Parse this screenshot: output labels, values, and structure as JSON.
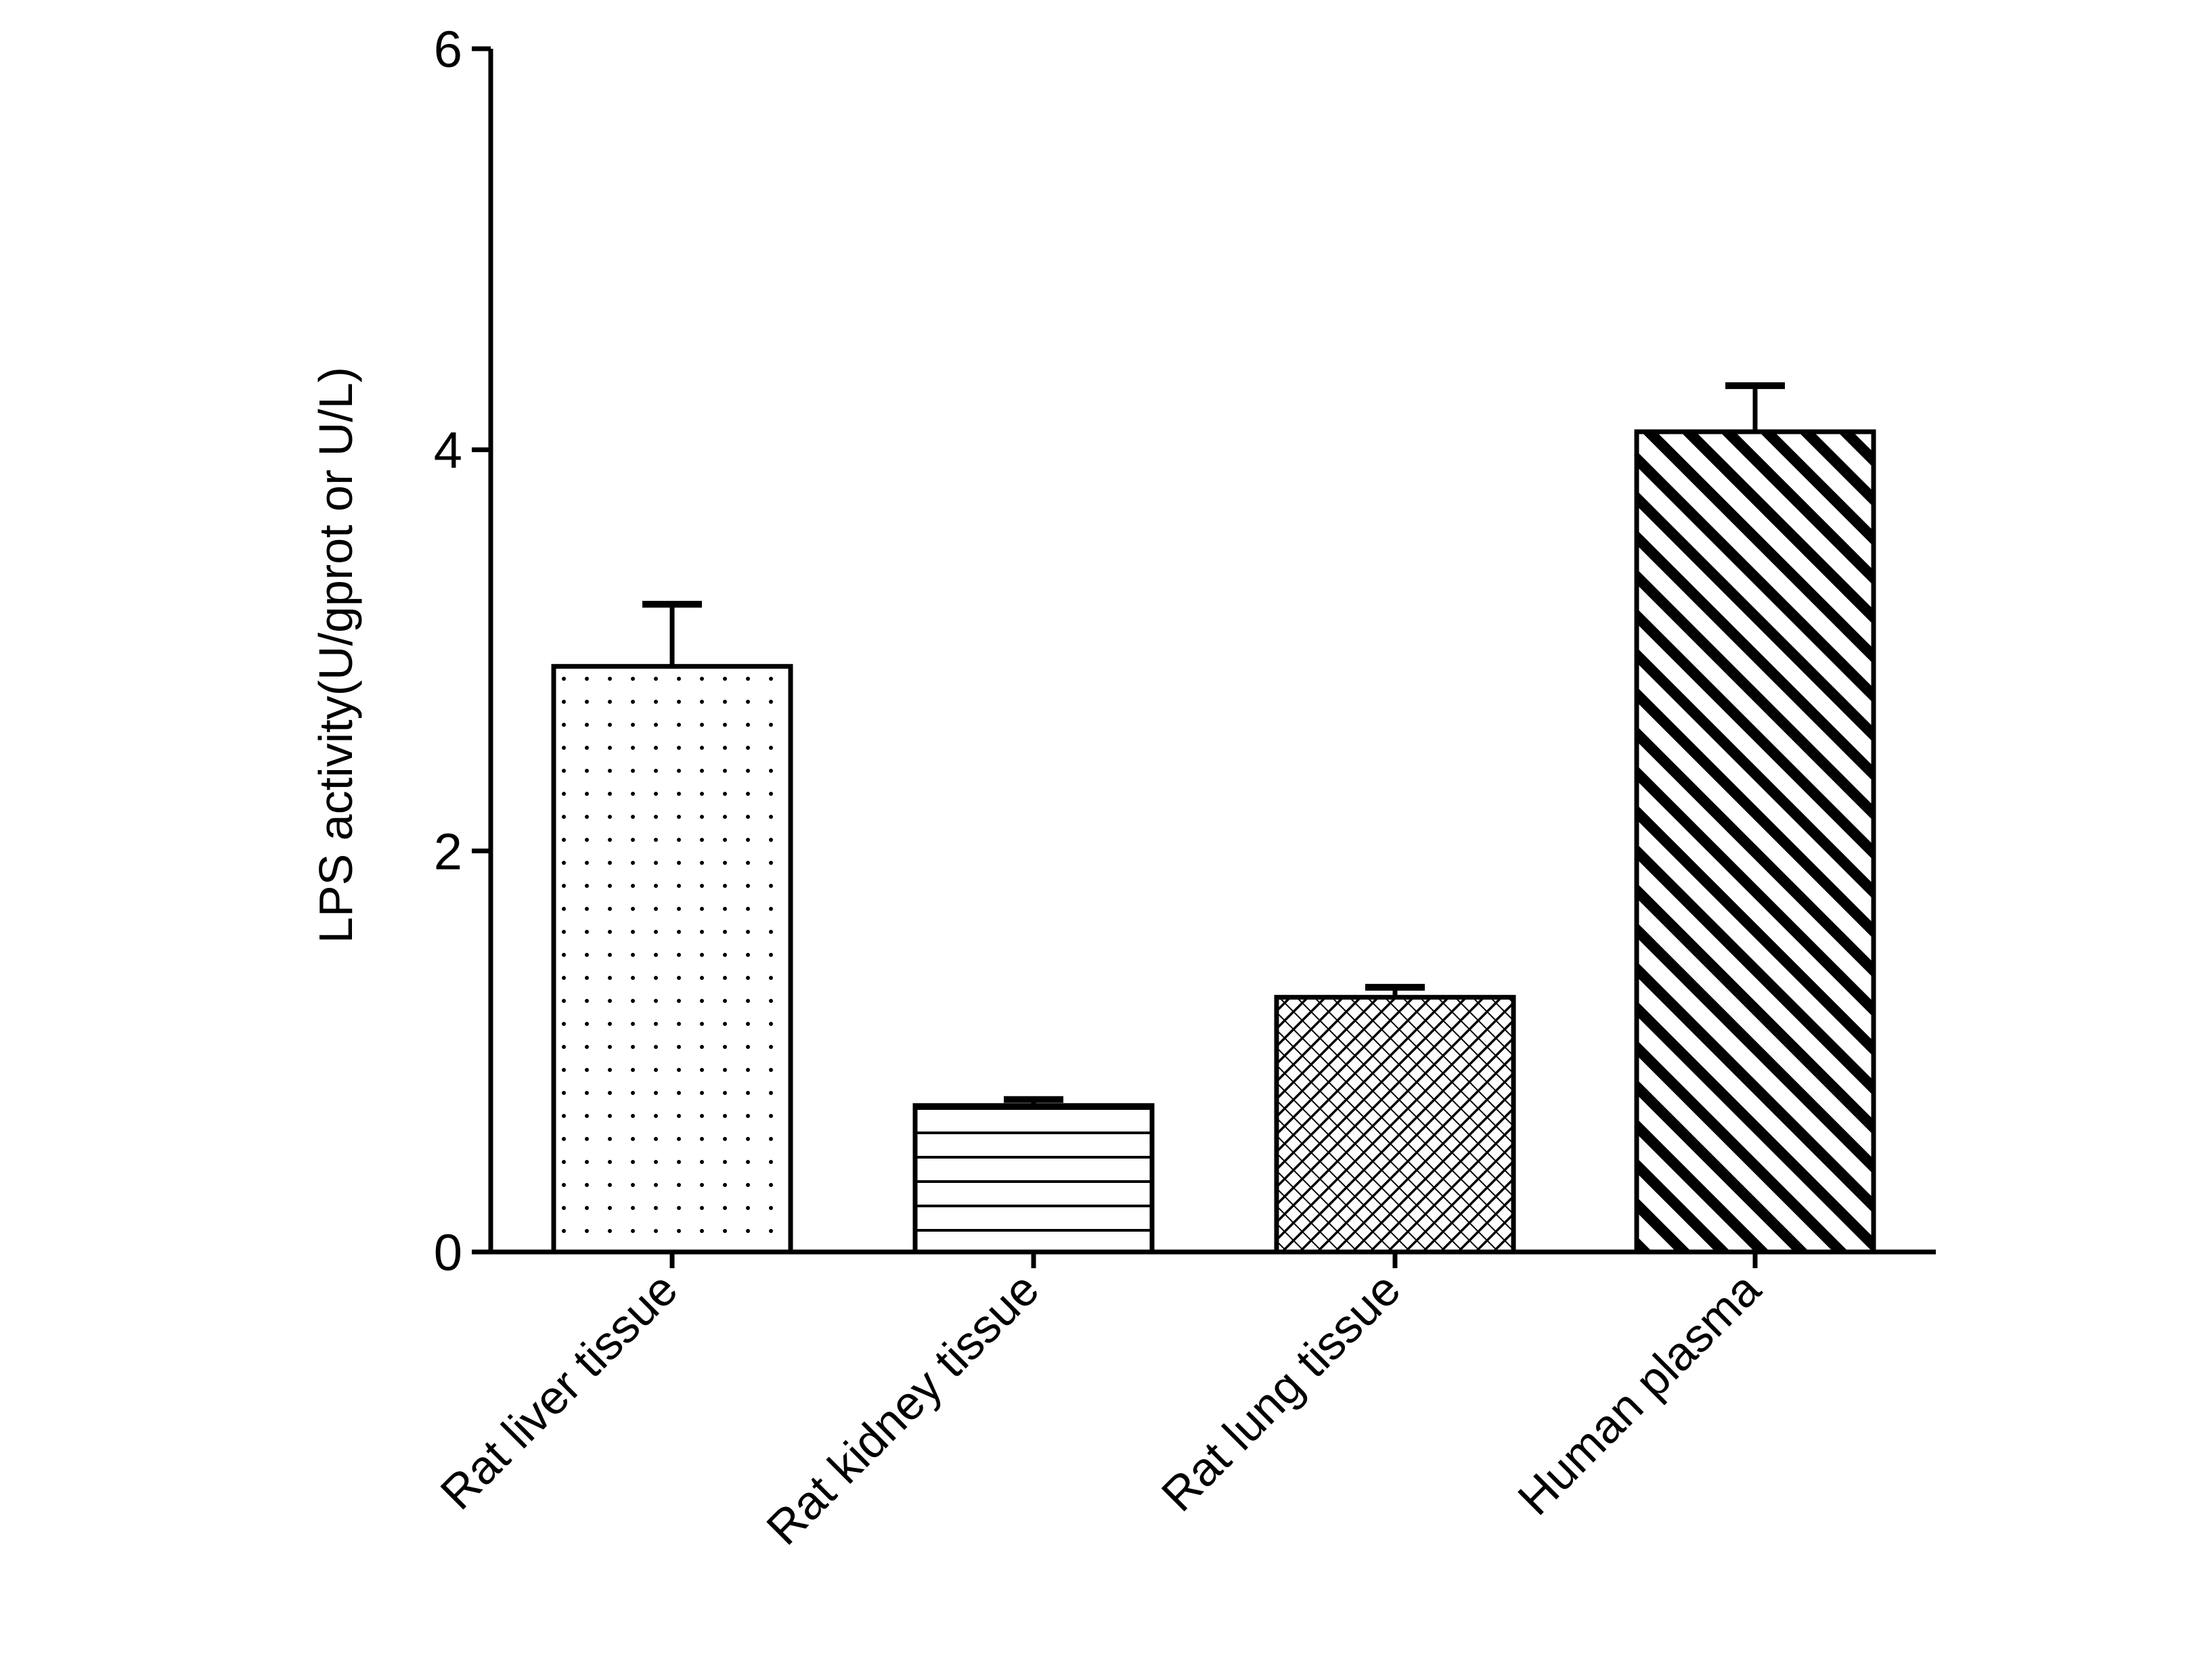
{
  "chart_data": {
    "type": "bar",
    "title": "",
    "xlabel": "",
    "ylabel": "LPS activity(U/gprot or U/L)",
    "ylim": [
      0,
      6
    ],
    "yticks": [
      0,
      2,
      4,
      6
    ],
    "grid": false,
    "legend": "none",
    "categories": [
      "Rat liver tissue",
      "Rat kidney tissue",
      "Rat lung tissue",
      "Human plasma"
    ],
    "values": [
      2.92,
      0.73,
      1.27,
      4.09
    ],
    "errors": [
      0.31,
      0.03,
      0.05,
      0.23
    ],
    "patterns": [
      "dots",
      "horizontal-lines",
      "crosshatch",
      "diagonal-stripes"
    ],
    "colors": {
      "stroke": "#000000",
      "fill": "#ffffff"
    }
  }
}
